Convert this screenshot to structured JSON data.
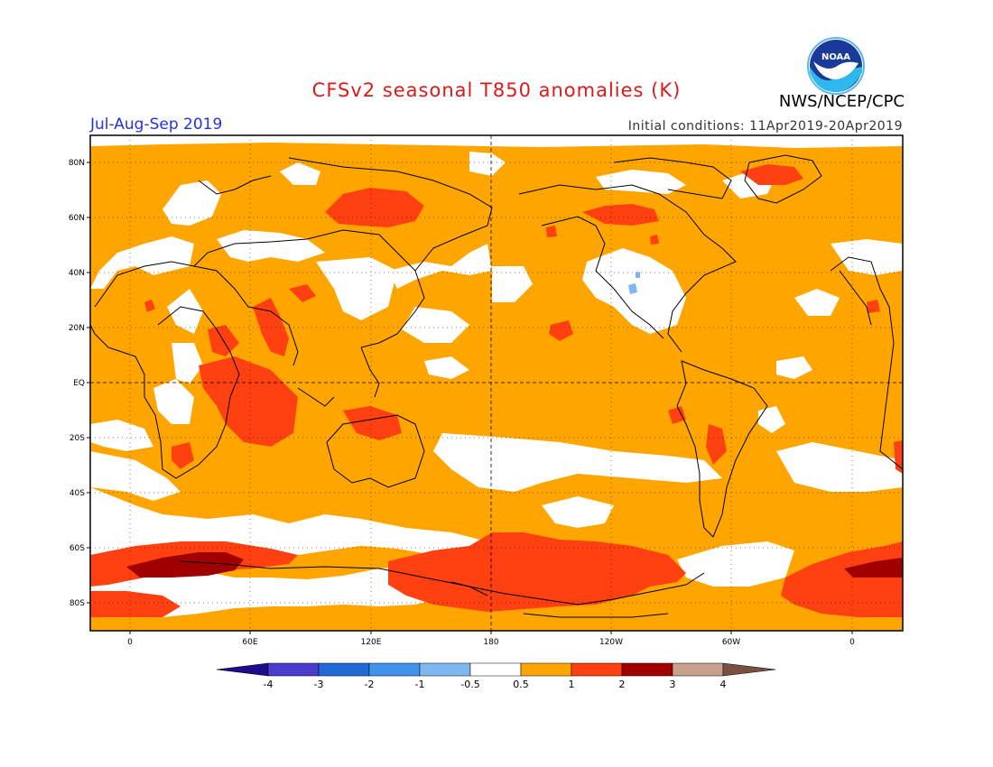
{
  "header": {
    "title": "CFSv2 seasonal T850 anomalies (K)",
    "period": "Jul-Aug-Sep 2019",
    "initial_conditions": "Initial conditions: 11Apr2019-20Apr2019",
    "agency": "NWS/NCEP/CPC",
    "logo_text": "NOAA"
  },
  "colors": {
    "title": "#dd1a1a",
    "period": "#2233dd",
    "anomaly_pos_05_1": "#ffa500",
    "anomaly_pos_1_2": "#ff4010",
    "anomaly_pos_2_3": "#a00000",
    "anomaly_land_outline": "#000000"
  },
  "map": {
    "lat_labels": [
      "80N",
      "60N",
      "40N",
      "20N",
      "EQ",
      "20S",
      "40S",
      "60S",
      "80S"
    ],
    "lon_labels": [
      "0",
      "60E",
      "120E",
      "180",
      "120W",
      "60W",
      "0"
    ]
  },
  "colorbar": {
    "labels": [
      "-4",
      "-3",
      "-2",
      "-1",
      "-0.5",
      "0.5",
      "1",
      "2",
      "3",
      "4"
    ],
    "colors": [
      "#1e0c8c",
      "#4a3ccc",
      "#1f6ad6",
      "#3f93ec",
      "#7db8f0",
      "#ffffff",
      "#ffa500",
      "#ff4010",
      "#a00000",
      "#c8a08c",
      "#7a5040"
    ]
  }
}
